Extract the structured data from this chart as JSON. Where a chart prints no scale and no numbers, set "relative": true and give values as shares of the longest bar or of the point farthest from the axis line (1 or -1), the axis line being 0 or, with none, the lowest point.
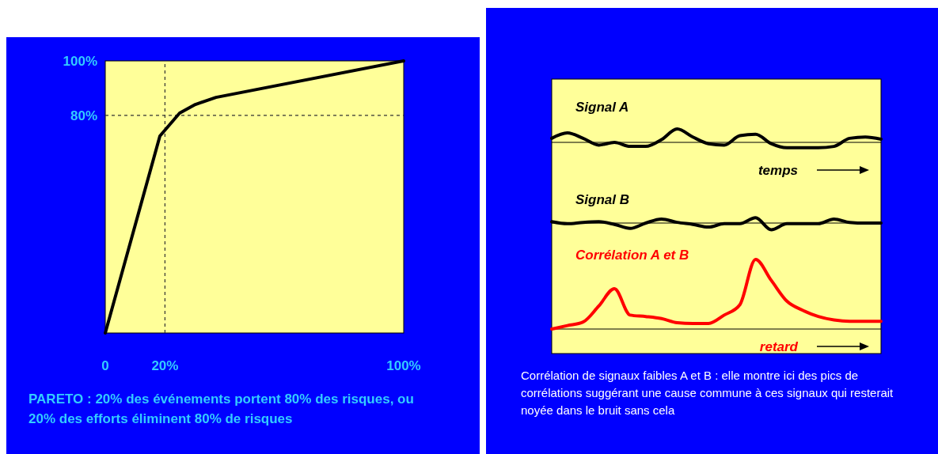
{
  "chart_data": [
    {
      "type": "line",
      "xlim": [
        0,
        100
      ],
      "ylim": [
        0,
        100
      ],
      "xticks": [
        {
          "value": 0,
          "label": "0"
        },
        {
          "value": 20,
          "label": "20%"
        },
        {
          "value": 100,
          "label": "100%"
        }
      ],
      "yticks": [
        {
          "value": 80,
          "label": "80%"
        },
        {
          "value": 100,
          "label": "100%"
        }
      ],
      "x": [
        0,
        18.3,
        24.9,
        30.2,
        37.1,
        100
      ],
      "series": [
        {
          "color": "#000000",
          "values": [
            0,
            72.4,
            80.8,
            84.0,
            86.6,
            100
          ]
        }
      ],
      "ref_lines": [
        {
          "axis": "x",
          "value": 20,
          "line_style": "dashed",
          "color": "#333333"
        },
        {
          "axis": "y",
          "value": 80,
          "line_style": "dashed",
          "color": "#333333"
        }
      ],
      "annotations": [
        "PARETO : 20% des événements portent 80% des risques, ou 20% des efforts éliminent 80% de risques"
      ]
    },
    {
      "type": "line",
      "relative": true,
      "xlabel": "temps",
      "categories": [
        null,
        null,
        null,
        null,
        null,
        null,
        null,
        null,
        null,
        null,
        null,
        null,
        null,
        null,
        null,
        null,
        null,
        null,
        null,
        null,
        null,
        null
      ],
      "series": [
        {
          "name": "Signal A",
          "color": "#000000",
          "values": [
            0.3,
            0.7,
            0.3,
            -0.2,
            0,
            -0.3,
            -0.3,
            0.2,
            1,
            0.4,
            -0.1,
            -0.2,
            0.5,
            0.6,
            -0.1,
            -0.4,
            -0.4,
            -0.4,
            -0.3,
            0.3,
            0.4,
            0.24
          ]
        }
      ]
    },
    {
      "type": "line",
      "relative": true,
      "categories": [
        null,
        null,
        null,
        null,
        null,
        null,
        null,
        null,
        null,
        null,
        null,
        null,
        null,
        null,
        null,
        null,
        null,
        null,
        null,
        null,
        null,
        null
      ],
      "series": [
        {
          "name": "Signal B",
          "color": "#000000",
          "values": [
            0.2,
            -0.1,
            0.1,
            0.2,
            -0.2,
            -0.8,
            0,
            0.6,
            0.1,
            -0.2,
            -0.6,
            -0.1,
            -0.1,
            0.8,
            -1,
            -0.1,
            -0.1,
            -0.1,
            0.6,
            0.1,
            0,
            0
          ]
        }
      ]
    },
    {
      "type": "line",
      "relative": true,
      "xlabel": "retard",
      "categories": [
        null,
        null,
        null,
        null,
        null,
        null,
        null,
        null,
        null,
        null,
        null,
        null,
        null,
        null,
        null,
        null,
        null,
        null,
        null,
        null,
        null,
        null
      ],
      "series": [
        {
          "name": "Corrélation A et B",
          "color": "#ff0000",
          "values": [
            0,
            0.05,
            0.1,
            0.33,
            0.58,
            0.2,
            0.18,
            0.15,
            0.09,
            0.08,
            0.08,
            0.2,
            0.35,
            1,
            0.7,
            0.4,
            0.27,
            0.18,
            0.13,
            0.11,
            0.11,
            0.11
          ]
        }
      ],
      "annotations": [
        "Corrélation de signaux faibles A et B : elle montre ici des pics de corrélations suggérant une cause commune à ces signaux qui resterait noyée dans le bruit sans cela"
      ]
    }
  ]
}
